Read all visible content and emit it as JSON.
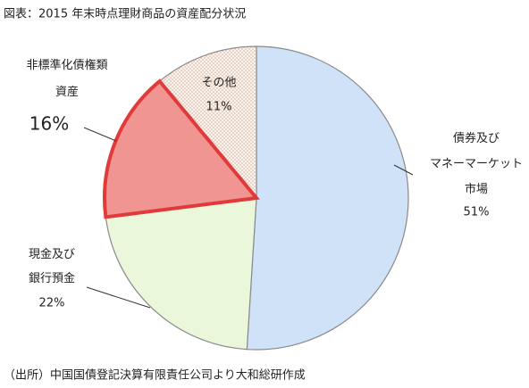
{
  "chart_data": {
    "type": "pie",
    "title": "図表：2015 年末時点理財商品の資産配分状況",
    "categories": [
      "債券及び\nマネーマーケット\n市場",
      "現金及び\n銀行預金",
      "非標準化債権類\n資産",
      "その他"
    ],
    "values": [
      51,
      22,
      16,
      11
    ],
    "value_labels": [
      "51%",
      "22%",
      "16%",
      "11%"
    ],
    "colors": [
      "#cfe2f8",
      "#ebf7da",
      "#f09592",
      "#fdf3ec"
    ],
    "source": "（出所）中国国債登記決算有限責任公司より大和総研作成"
  }
}
